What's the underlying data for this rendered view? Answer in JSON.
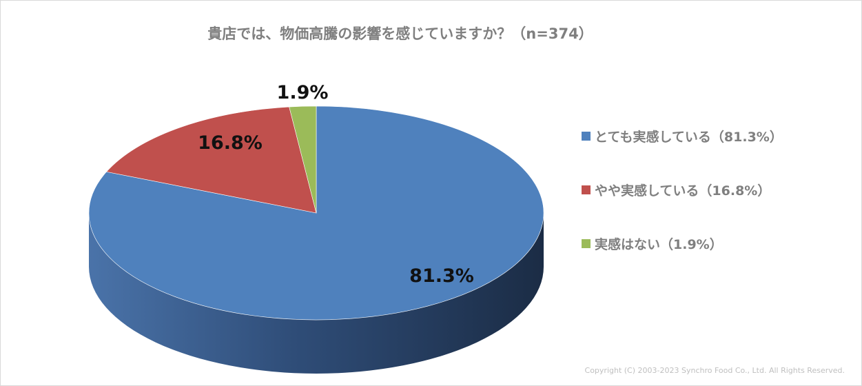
{
  "chart_data": {
    "type": "pie",
    "title": "貴店では、物価高騰の影響を感じていますか？（n=374）",
    "categories": [
      "とても実感している",
      "やや実感している",
      "実感はない"
    ],
    "values": [
      81.3,
      16.8,
      1.9
    ],
    "data_labels": [
      "81.3%",
      "16.8%",
      "1.9%"
    ],
    "legend": {
      "placement": "right",
      "entries": [
        "とても実感している（81.3%）",
        "やや実感している（16.8%）",
        "実感はない（1.9%）"
      ]
    },
    "colors": [
      "#4f81bd",
      "#c0504d",
      "#9bbb59"
    ],
    "style": "3d"
  },
  "footer": {
    "copyright": "Copyright (C) 2003-2023   Synchro Food Co., Ltd. All Rights Reserved."
  }
}
